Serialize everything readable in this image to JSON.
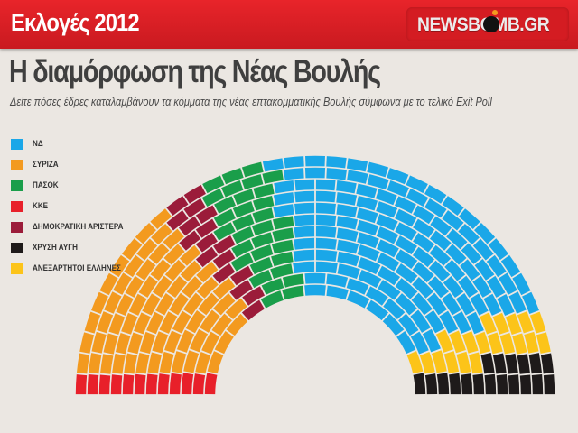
{
  "header": {
    "section_title": "Εκλογές 2012",
    "brand": "NEWSBOMB.GR"
  },
  "page_title": "Η διαμόρφωση της Νέας Βουλής",
  "subtitle": "Δείτε πόσες έδρες καταλαμβάνουν τα κόμματα της νέας επτακομματικής Βουλής σύμφωνα με το τελικό  Exit Poll",
  "legend": [
    {
      "label": "ΝΔ",
      "color": "#1aa7e8"
    },
    {
      "label": "ΣΥΡΙΖΑ",
      "color": "#f39a1f"
    },
    {
      "label": "ΠΑΣΟΚ",
      "color": "#1a9e4a"
    },
    {
      "label": "ΚΚΕ",
      "color": "#e8202a"
    },
    {
      "label": "ΔΗΜΟΚΡΑΤΙΚΗ ΑΡΙΣΤΕΡΑ",
      "color": "#9b1c3a"
    },
    {
      "label": "ΧΡΥΣΗ ΑΥΓΗ",
      "color": "#1e1a1a"
    },
    {
      "label": "ΑΝΕΞΑΡΤΗΤΟΙ ΕΛΛΗΝΕΣ",
      "color": "#fcc419"
    }
  ],
  "chart_data": {
    "type": "hemicycle",
    "title": "Η διαμόρφωση της Νέας Βουλής",
    "total_seats": 300,
    "rows": 12,
    "order_left_to_right": [
      "ΚΚΕ",
      "ΣΥΡΙΖΑ",
      "ΔΗΜΟΚΡΑΤΙΚΗ ΑΡΙΣΤΕΡΑ",
      "ΠΑΣΟΚ",
      "ΝΔ",
      "ΑΝΕΞΑΡΤΗΤΟΙ ΕΛΛΗΝΕΣ",
      "ΧΡΥΣΗ ΑΥΓΗ"
    ],
    "series": [
      {
        "name": "ΚΚΕ",
        "seats": 12,
        "color": "#e8202a"
      },
      {
        "name": "ΣΥΡΙΖΑ",
        "seats": 72,
        "color": "#f39a1f"
      },
      {
        "name": "ΔΗΜΟΚΡΑΤΙΚΗ ΑΡΙΣΤΕΡΑ",
        "seats": 17,
        "color": "#9b1c3a"
      },
      {
        "name": "ΠΑΣΟΚ",
        "seats": 33,
        "color": "#1a9e4a"
      },
      {
        "name": "ΝΔ",
        "seats": 128,
        "color": "#1aa7e8"
      },
      {
        "name": "ΑΝΕΞΑΡΤΗΤΟΙ ΕΛΛΗΝΕΣ",
        "seats": 20,
        "color": "#fcc419"
      },
      {
        "name": "ΧΡΥΣΗ ΑΥΓΗ",
        "seats": 18,
        "color": "#1e1a1a"
      }
    ]
  }
}
